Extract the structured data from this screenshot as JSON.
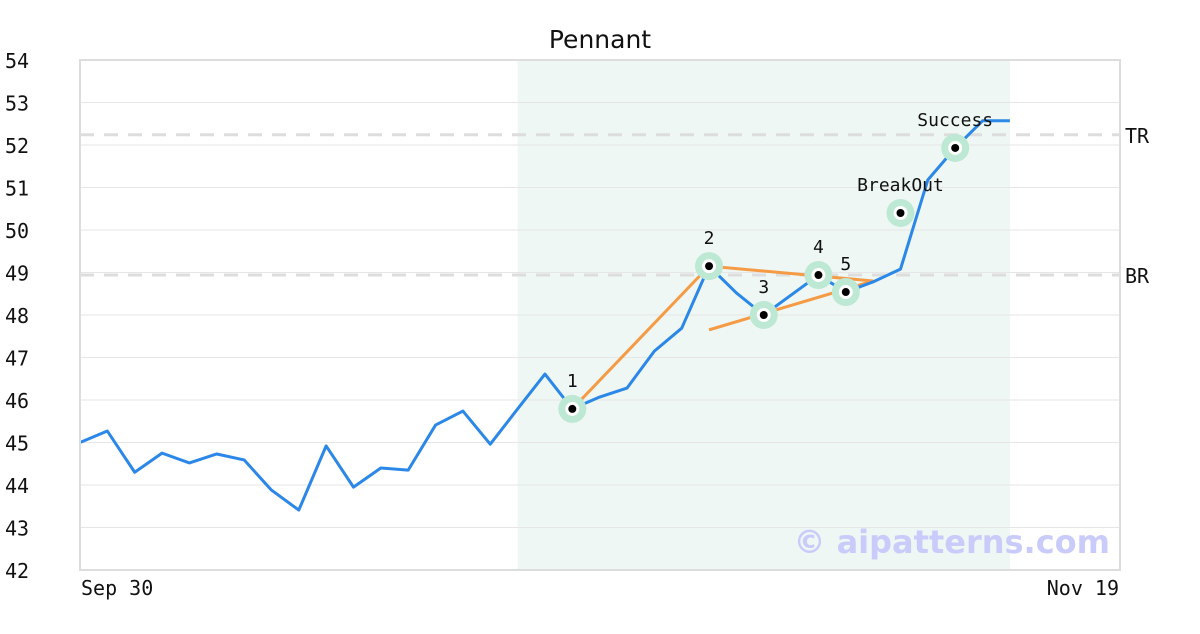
{
  "chart_data": {
    "type": "line",
    "title": "Pennant",
    "xlabel": "",
    "ylabel": "",
    "ylim": [
      42,
      54
    ],
    "y_ticks": [
      42,
      43,
      44,
      45,
      46,
      47,
      48,
      49,
      50,
      51,
      52,
      53,
      54
    ],
    "x_tick_labels": [
      "Sep 30",
      "Nov 19"
    ],
    "grid": true,
    "series": [
      {
        "values": [
          45.0,
          45.27,
          44.3,
          44.75,
          44.52,
          44.73,
          44.59,
          43.88,
          43.41,
          44.92,
          43.95,
          44.4,
          44.35,
          45.41,
          45.74,
          44.96,
          45.79,
          46.61,
          45.79,
          46.07,
          46.28,
          47.15,
          47.69,
          49.15,
          48.52,
          48.0,
          48.47,
          48.94,
          48.54,
          48.78,
          49.08,
          51.18,
          51.93,
          52.57,
          52.57
        ],
        "color": "#2b87e8"
      }
    ],
    "pattern_region": {
      "start_index": 16,
      "end_index": 34,
      "color": "#eef7f3"
    },
    "levels": [
      {
        "label": "TR",
        "value": 52.24
      },
      {
        "label": "BR",
        "value": 48.94
      }
    ],
    "trendlines": [
      {
        "points": [
          [
            18,
            45.79
          ],
          [
            23,
            49.15
          ],
          [
            29,
            48.8
          ]
        ],
        "color": "#f59b45"
      },
      {
        "points": [
          [
            23,
            47.65
          ],
          [
            29,
            48.8
          ]
        ],
        "color": "#f59b45"
      }
    ],
    "markers": [
      {
        "label": "1",
        "index": 18,
        "value": 45.79
      },
      {
        "label": "2",
        "index": 23,
        "value": 49.15
      },
      {
        "label": "3",
        "index": 25,
        "value": 48.0
      },
      {
        "label": "4",
        "index": 27,
        "value": 48.94
      },
      {
        "label": "5",
        "index": 28,
        "value": 48.54
      },
      {
        "label": "BreakOut",
        "index": 30,
        "value": 50.4
      },
      {
        "label": "Success",
        "index": 32,
        "value": 51.93
      }
    ],
    "marker_color": "#bde8d4"
  },
  "watermark": "© aipatterns.com"
}
